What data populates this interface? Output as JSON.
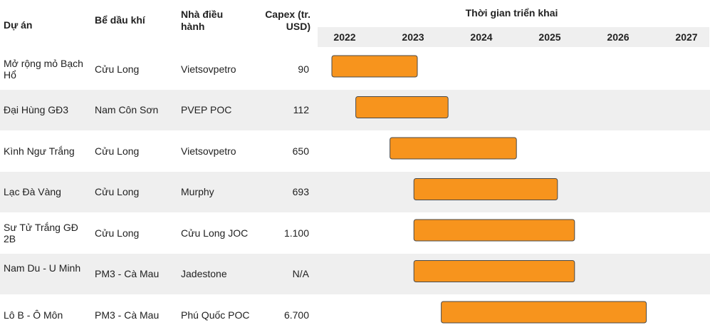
{
  "header": {
    "project": "Dự án",
    "basin": "Bể dầu khí",
    "operator": "Nhà điều hành",
    "capex": "Capex (tr. USD)",
    "timeline": "Thời gian triển khai"
  },
  "colors": {
    "bar_fill": "#f7941d",
    "bar_stroke": "#4a4a4a",
    "row_alt": "#efefef",
    "year_band": "#efefef"
  },
  "chart_data": {
    "type": "table",
    "years": [
      "2022",
      "2023",
      "2024",
      "2025",
      "2026",
      "2027"
    ],
    "rows": [
      {
        "project": "Mở rộng mỏ Bạch Hổ",
        "basin": "Cửu Long",
        "operator": "Vietsovpetro",
        "capex": "90",
        "start": 2022.0,
        "end": 2023.25
      },
      {
        "project": "Đại Hùng GĐ3",
        "basin": "Nam Côn Sơn",
        "operator": "PVEP POC",
        "capex": "112",
        "start": 2022.35,
        "end": 2023.7
      },
      {
        "project": "Kình Ngư Trắng",
        "basin": "Cửu Long",
        "operator": "Vietsovpetro",
        "capex": "650",
        "start": 2022.85,
        "end": 2024.7
      },
      {
        "project": "Lạc Đà Vàng",
        "basin": "Cửu Long",
        "operator": "Murphy",
        "capex": "693",
        "start": 2023.2,
        "end": 2025.3
      },
      {
        "project": "Sư Tử Trắng GĐ 2B",
        "basin": "Cửu Long",
        "operator": "Cửu Long JOC",
        "capex": "1.100",
        "start": 2023.2,
        "end": 2025.55
      },
      {
        "project": "Nam Du - U Minh",
        "basin": "PM3 - Cà Mau",
        "operator": "Jadestone",
        "capex": "N/A",
        "start": 2023.2,
        "end": 2025.55
      },
      {
        "project": "Lô B - Ô Môn",
        "basin": "PM3 - Cà Mau",
        "operator": "Phú Quốc POC",
        "capex": "6.700",
        "start": 2023.6,
        "end": 2026.6
      }
    ]
  }
}
